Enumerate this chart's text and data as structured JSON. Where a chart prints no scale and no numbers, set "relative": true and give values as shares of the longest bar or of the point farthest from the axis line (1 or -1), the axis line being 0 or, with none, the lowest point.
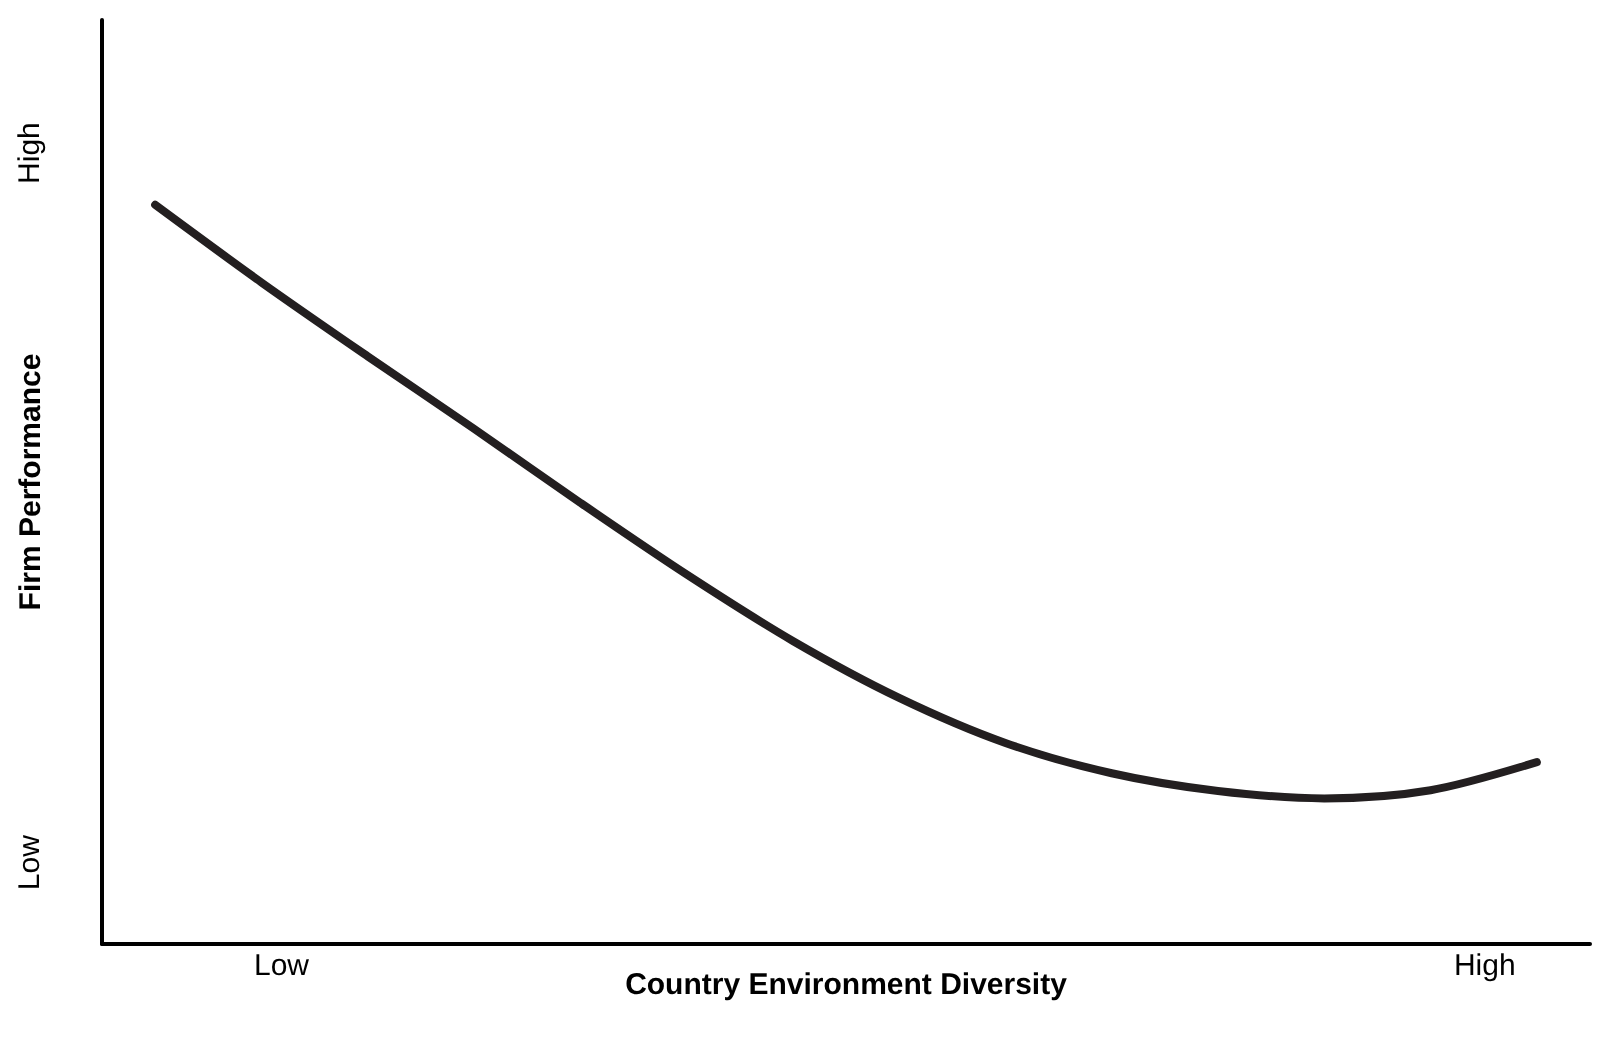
{
  "chart_data": {
    "type": "line",
    "relative": true,
    "xlabel": "Country Environment Diversity",
    "ylabel": "Firm Performance",
    "categories": [
      null,
      null,
      null,
      null,
      null,
      null,
      null,
      null,
      null,
      null,
      null,
      null,
      null,
      null
    ],
    "series": [
      {
        "color": "#231f20",
        "values": [
          1.0,
          0.895,
          0.795,
          0.697,
          0.597,
          0.5,
          0.41,
          0.333,
          0.272,
          0.231,
          0.207,
          0.197,
          0.208,
          0.246
        ]
      }
    ],
    "annotations": [
      "High",
      "Low",
      "Low",
      "High"
    ],
    "line_style": "solid"
  }
}
